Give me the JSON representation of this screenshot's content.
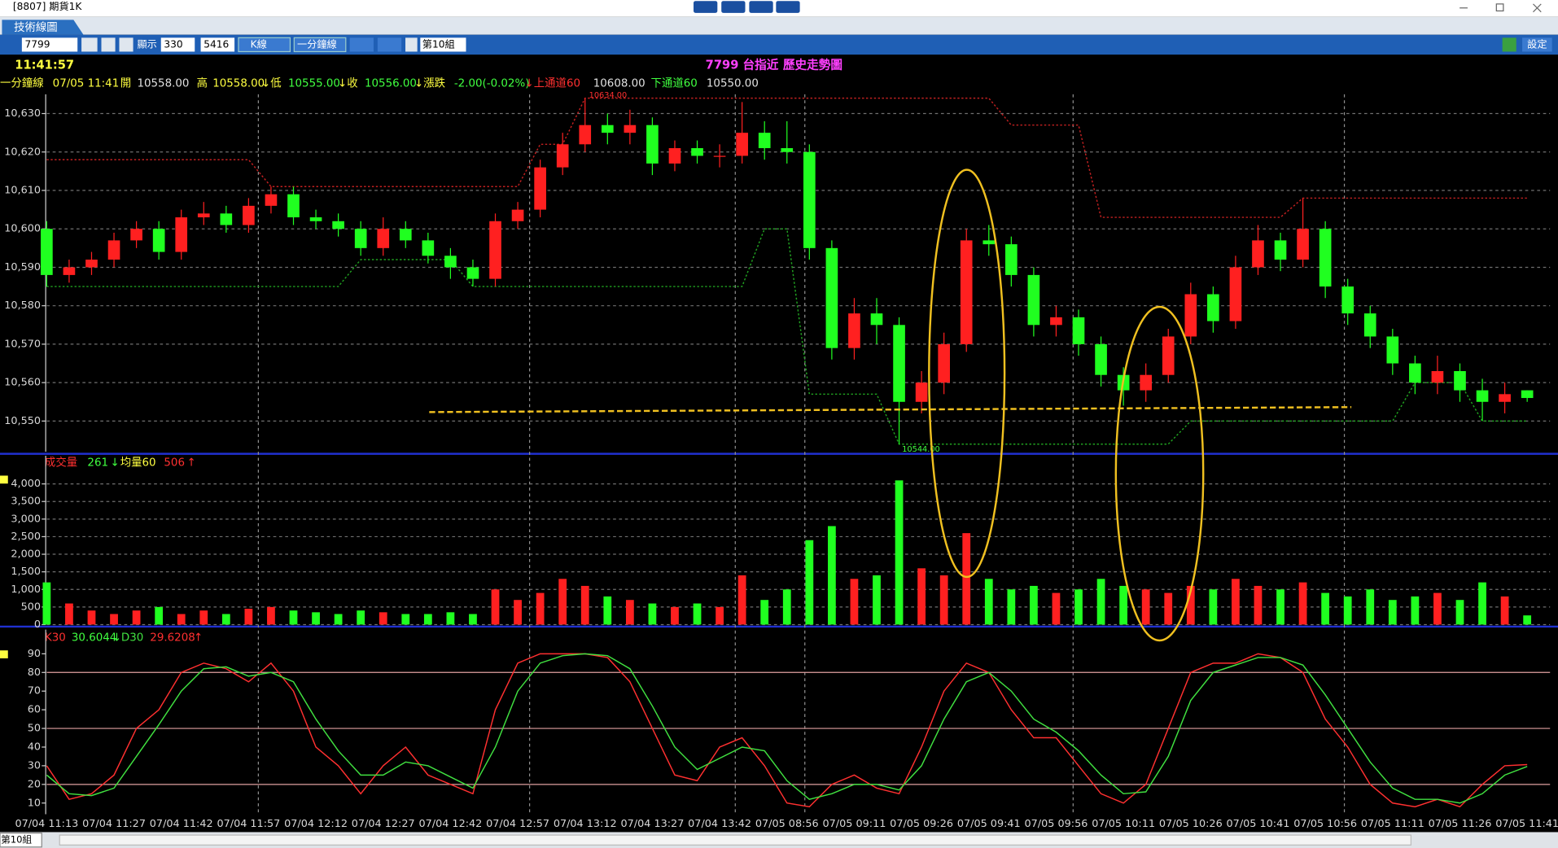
{
  "ui": {
    "window": {
      "title": "[8807] 期貨1K"
    },
    "tab": "技術線圖",
    "toolbar": {
      "symbol": "7799",
      "show": "顯示",
      "count": "330",
      "total": "5416",
      "chart_type": "K線",
      "period": "一分鐘線",
      "group": "第10組",
      "settings": "設定"
    },
    "header": {
      "time": "11:41:57",
      "symbol": "7799 台指近",
      "title": "歷史走勢圖"
    },
    "quote": {
      "period": "一分鐘線",
      "datetime": "07/05 11:41",
      "open_label": "開",
      "open": "10558.00",
      "high_label": "高",
      "high": "10558.00",
      "low_label": "↓低",
      "low": "10555.00",
      "close_label": "↓收",
      "close": "10556.00",
      "change_label": "↓漲跌",
      "change": "-2.00(-0.02%)",
      "upper_label": "↓上通道60",
      "upper": "10608.00",
      "lower_label": "下通道60",
      "lower": "10550.00"
    },
    "volume_legend": {
      "arrow": "↓",
      "avg_label": "均量60",
      "avg": "506",
      "end_arrow": "↑"
    },
    "kd_legend": {
      "arrow": "↓",
      "end_arrow": "↑"
    },
    "status": {
      "group": "第10組"
    }
  },
  "chart_data": [
    {
      "type": "candlestick",
      "categories": [
        "07/04 11:13",
        null,
        null,
        "07/04 11:27",
        null,
        null,
        "07/04 11:42",
        null,
        null,
        "07/04 11:57",
        null,
        null,
        "07/04 12:12",
        null,
        null,
        "07/04 12:27",
        null,
        null,
        "07/04 12:42",
        null,
        null,
        "07/04 12:57",
        null,
        null,
        "07/04 13:12",
        null,
        null,
        "07/04 13:27",
        null,
        null,
        "07/04 13:42",
        null,
        null,
        "07/05 08:56",
        null,
        null,
        "07/05 09:11",
        null,
        null,
        "07/05 09:26",
        null,
        null,
        "07/05 09:41",
        null,
        null,
        "07/05 09:56",
        null,
        null,
        "07/05 10:11",
        null,
        null,
        "07/05 10:26",
        null,
        null,
        "07/05 10:41",
        null,
        null,
        "07/05 10:56",
        null,
        null,
        "07/05 11:11",
        null,
        null,
        "07/05 11:26",
        null,
        null,
        "07/05 11:41"
      ],
      "open": [
        10600,
        10588,
        10590,
        10592,
        10597,
        10600,
        10594,
        10603,
        10604,
        10601,
        10606,
        10609,
        10603,
        10602,
        10600,
        10595,
        10600,
        10597,
        10593,
        10590,
        10587,
        10602,
        10605,
        10616,
        10622,
        10627,
        10625,
        10627,
        10617,
        10621,
        10619,
        10619,
        10625,
        10621,
        10620,
        10595,
        10569,
        10578,
        10575,
        10555,
        10560,
        10570,
        10597,
        10596,
        10588,
        10575,
        10577,
        10570,
        10562,
        10558,
        10562,
        10572,
        10583,
        10576,
        10590,
        10597,
        10592,
        10600,
        10585,
        10578,
        10572,
        10565,
        10560,
        10563,
        10558,
        10555,
        10558
      ],
      "high": [
        10602,
        10592,
        10594,
        10599,
        10602,
        10602,
        10605,
        10607,
        10606,
        10608,
        10611,
        10611,
        10605,
        10604,
        10602,
        10603,
        10602,
        10599,
        10595,
        10592,
        10604,
        10607,
        10618,
        10625,
        10634,
        10630,
        10631,
        10629,
        10623,
        10623,
        10622,
        10633,
        10628,
        10628,
        10622,
        10597,
        10582,
        10582,
        10577,
        10563,
        10573,
        10600,
        10601,
        10598,
        10590,
        10580,
        10579,
        10572,
        10564,
        10565,
        10574,
        10586,
        10585,
        10593,
        10601,
        10599,
        10608,
        10602,
        10587,
        10580,
        10574,
        10567,
        10567,
        10565,
        10561,
        10560,
        10558
      ],
      "low": [
        10585,
        10586,
        10588,
        10590,
        10595,
        10592,
        10592,
        10601,
        10599,
        10599,
        10604,
        10601,
        10600,
        10598,
        10593,
        10593,
        10595,
        10591,
        10587,
        10585,
        10585,
        10600,
        10603,
        10614,
        10620,
        10622,
        10622,
        10614,
        10615,
        10617,
        10616,
        10617,
        10618,
        10617,
        10592,
        10566,
        10566,
        10570,
        10544,
        10552,
        10557,
        10568,
        10593,
        10585,
        10572,
        10572,
        10567,
        10559,
        10554,
        10555,
        10560,
        10570,
        10573,
        10574,
        10588,
        10589,
        10590,
        10582,
        10575,
        10569,
        10562,
        10557,
        10557,
        10555,
        10550,
        10552,
        10555
      ],
      "close": [
        10588,
        10590,
        10592,
        10597,
        10600,
        10594,
        10603,
        10604,
        10601,
        10606,
        10609,
        10603,
        10602,
        10600,
        10595,
        10600,
        10597,
        10593,
        10590,
        10587,
        10602,
        10605,
        10616,
        10622,
        10627,
        10625,
        10627,
        10617,
        10621,
        10619,
        10619,
        10625,
        10621,
        10620,
        10595,
        10569,
        10578,
        10575,
        10555,
        10560,
        10570,
        10597,
        10596,
        10588,
        10575,
        10577,
        10570,
        10562,
        10558,
        10562,
        10572,
        10583,
        10576,
        10590,
        10597,
        10592,
        10600,
        10585,
        10578,
        10572,
        10565,
        10560,
        10563,
        10558,
        10555,
        10557,
        10556
      ],
      "up_color": "#ff2020",
      "down_color": "#20ff20",
      "upper_channel": {
        "color": "#c02020",
        "values": [
          10618,
          10618,
          10618,
          10618,
          10618,
          10618,
          10618,
          10618,
          10618,
          10618,
          10611,
          10611,
          10611,
          10611,
          10611,
          10611,
          10611,
          10611,
          10611,
          10611,
          10611,
          10611,
          10622,
          10622,
          10634,
          10634,
          10634,
          10634,
          10634,
          10634,
          10634,
          10634,
          10634,
          10634,
          10634,
          10634,
          10634,
          10634,
          10634,
          10634,
          10634,
          10634,
          10634,
          10627,
          10627,
          10627,
          10627,
          10603,
          10603,
          10603,
          10603,
          10603,
          10603,
          10603,
          10603,
          10603,
          10608,
          10608,
          10608,
          10608,
          10608,
          10608,
          10608,
          10608,
          10608,
          10608,
          10608
        ]
      },
      "lower_channel": {
        "color": "#20a020",
        "values": [
          10585,
          10585,
          10585,
          10585,
          10585,
          10585,
          10585,
          10585,
          10585,
          10585,
          10585,
          10585,
          10585,
          10585,
          10592,
          10592,
          10592,
          10592,
          10592,
          10585,
          10585,
          10585,
          10585,
          10585,
          10585,
          10585,
          10585,
          10585,
          10585,
          10585,
          10585,
          10585,
          10600,
          10600,
          10557,
          10557,
          10557,
          10557,
          10544,
          10544,
          10544,
          10544,
          10544,
          10544,
          10544,
          10544,
          10544,
          10544,
          10544,
          10544,
          10544,
          10550,
          10550,
          10550,
          10550,
          10550,
          10550,
          10550,
          10550,
          10550,
          10550,
          10560,
          10560,
          10560,
          10550,
          10550,
          10550
        ]
      },
      "high_label": "10634.00",
      "low_label": "10544.00",
      "ylim": [
        10542,
        10635
      ],
      "yticks": [
        {
          "value": 10550,
          "label": "10,550"
        },
        {
          "value": 10560,
          "label": "10,560"
        },
        {
          "value": 10570,
          "label": "10,570"
        },
        {
          "value": 10580,
          "label": "10,580"
        },
        {
          "value": 10590,
          "label": "10,590"
        },
        {
          "value": 10600,
          "label": "10,600"
        },
        {
          "value": 10610,
          "label": "10,610"
        },
        {
          "value": 10620,
          "label": "10,620"
        },
        {
          "value": 10630,
          "label": "10,630"
        }
      ],
      "grid": true
    },
    {
      "type": "bar",
      "name": "成交量",
      "values": [
        1200,
        600,
        400,
        300,
        400,
        500,
        300,
        400,
        300,
        450,
        500,
        400,
        350,
        300,
        400,
        350,
        300,
        300,
        350,
        300,
        1000,
        700,
        900,
        1300,
        1100,
        800,
        700,
        600,
        500,
        600,
        500,
        1400,
        700,
        1000,
        2400,
        2800,
        1300,
        1400,
        4100,
        1600,
        1400,
        2600,
        1300,
        1000,
        1100,
        900,
        1000,
        1300,
        1100,
        1000,
        900,
        1100,
        1000,
        1300,
        1100,
        1000,
        1200,
        900,
        800,
        1000,
        700,
        800,
        900,
        700,
        1200,
        800,
        261
      ],
      "ylim": [
        0,
        4800
      ],
      "yticks": [
        0,
        500,
        {
          "value": 1000,
          "label": "1,000"
        },
        {
          "value": 1500,
          "label": "1,500"
        },
        {
          "value": 2000,
          "label": "2,000"
        },
        {
          "value": 2500,
          "label": "2,500"
        },
        {
          "value": 3000,
          "label": "3,000"
        },
        {
          "value": 3500,
          "label": "3,500"
        },
        {
          "value": 4000,
          "label": "4,000"
        }
      ],
      "grid": true
    },
    {
      "type": "line",
      "series": [
        {
          "name": "K30",
          "color": "#ff3030",
          "values": [
            30,
            12,
            15,
            25,
            50,
            60,
            80,
            85,
            82,
            75,
            85,
            70,
            40,
            30,
            15,
            30,
            40,
            25,
            20,
            15,
            60,
            85,
            90,
            90,
            90,
            88,
            75,
            50,
            25,
            22,
            40,
            45,
            30,
            10,
            8,
            20,
            25,
            18,
            15,
            40,
            70,
            85,
            80,
            60,
            45,
            45,
            30,
            15,
            10,
            20,
            50,
            80,
            85,
            85,
            90,
            88,
            80,
            55,
            40,
            20,
            10,
            8,
            12,
            8,
            20,
            30,
            30.6044
          ]
        },
        {
          "name": "D30",
          "color": "#40e040",
          "values": [
            25,
            15,
            14,
            18,
            35,
            52,
            70,
            82,
            83,
            78,
            80,
            75,
            55,
            38,
            25,
            25,
            32,
            30,
            24,
            18,
            40,
            70,
            85,
            89,
            90,
            89,
            82,
            62,
            40,
            28,
            34,
            40,
            38,
            22,
            12,
            15,
            20,
            20,
            17,
            30,
            55,
            75,
            80,
            70,
            55,
            48,
            38,
            25,
            15,
            16,
            35,
            65,
            80,
            84,
            88,
            88,
            84,
            68,
            50,
            32,
            18,
            12,
            12,
            10,
            15,
            25,
            29.6208
          ]
        }
      ],
      "ref_lines": [
        20,
        50,
        80
      ],
      "ref_color": "#e0a0a0",
      "ylim": [
        4,
        103
      ],
      "yticks": [
        10,
        20,
        30,
        40,
        50,
        60,
        70,
        80,
        90
      ]
    }
  ]
}
